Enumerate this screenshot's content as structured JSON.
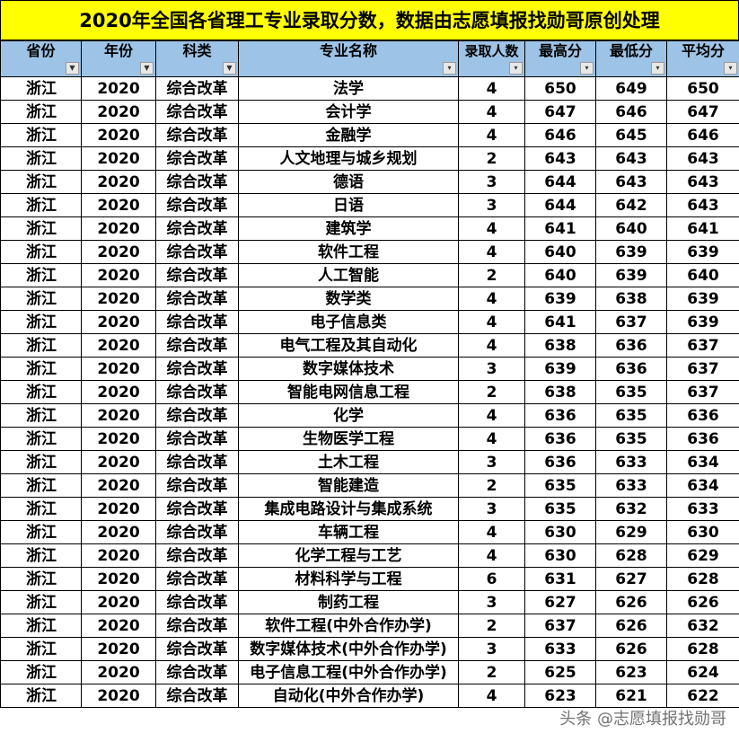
{
  "title": "2020年全国各省理工专业录取分数，数据由志愿填报找勋哥原创处理",
  "headers": [
    "省份",
    "年份",
    "科类",
    "专业名称",
    "录取人数",
    "最高分",
    "最低分",
    "平均分"
  ],
  "header_icons": [
    "filter-active-icon",
    "filter-active-icon",
    "filter-active-icon",
    "dropdown-icon",
    "dropdown-icon",
    "dropdown-icon",
    "dropdown-icon",
    "dropdown-icon"
  ],
  "rows": [
    [
      "浙江",
      "2020",
      "综合改革",
      "法学",
      "4",
      "650",
      "649",
      "650"
    ],
    [
      "浙江",
      "2020",
      "综合改革",
      "会计学",
      "4",
      "647",
      "646",
      "647"
    ],
    [
      "浙江",
      "2020",
      "综合改革",
      "金融学",
      "4",
      "646",
      "645",
      "646"
    ],
    [
      "浙江",
      "2020",
      "综合改革",
      "人文地理与城乡规划",
      "2",
      "643",
      "643",
      "643"
    ],
    [
      "浙江",
      "2020",
      "综合改革",
      "德语",
      "3",
      "644",
      "643",
      "643"
    ],
    [
      "浙江",
      "2020",
      "综合改革",
      "日语",
      "3",
      "644",
      "642",
      "643"
    ],
    [
      "浙江",
      "2020",
      "综合改革",
      "建筑学",
      "4",
      "641",
      "640",
      "641"
    ],
    [
      "浙江",
      "2020",
      "综合改革",
      "软件工程",
      "4",
      "640",
      "639",
      "639"
    ],
    [
      "浙江",
      "2020",
      "综合改革",
      "人工智能",
      "2",
      "640",
      "639",
      "640"
    ],
    [
      "浙江",
      "2020",
      "综合改革",
      "数学类",
      "4",
      "639",
      "638",
      "639"
    ],
    [
      "浙江",
      "2020",
      "综合改革",
      "电子信息类",
      "4",
      "641",
      "637",
      "639"
    ],
    [
      "浙江",
      "2020",
      "综合改革",
      "电气工程及其自动化",
      "4",
      "638",
      "636",
      "637"
    ],
    [
      "浙江",
      "2020",
      "综合改革",
      "数字媒体技术",
      "3",
      "639",
      "636",
      "637"
    ],
    [
      "浙江",
      "2020",
      "综合改革",
      "智能电网信息工程",
      "2",
      "638",
      "635",
      "637"
    ],
    [
      "浙江",
      "2020",
      "综合改革",
      "化学",
      "4",
      "636",
      "635",
      "636"
    ],
    [
      "浙江",
      "2020",
      "综合改革",
      "生物医学工程",
      "4",
      "636",
      "635",
      "636"
    ],
    [
      "浙江",
      "2020",
      "综合改革",
      "土木工程",
      "3",
      "636",
      "633",
      "634"
    ],
    [
      "浙江",
      "2020",
      "综合改革",
      "智能建造",
      "2",
      "635",
      "633",
      "634"
    ],
    [
      "浙江",
      "2020",
      "综合改革",
      "集成电路设计与集成系统",
      "3",
      "635",
      "632",
      "633"
    ],
    [
      "浙江",
      "2020",
      "综合改革",
      "车辆工程",
      "4",
      "630",
      "629",
      "630"
    ],
    [
      "浙江",
      "2020",
      "综合改革",
      "化学工程与工艺",
      "4",
      "630",
      "628",
      "629"
    ],
    [
      "浙江",
      "2020",
      "综合改革",
      "材料科学与工程",
      "6",
      "631",
      "627",
      "628"
    ],
    [
      "浙江",
      "2020",
      "综合改革",
      "制药工程",
      "3",
      "627",
      "626",
      "626"
    ],
    [
      "浙江",
      "2020",
      "综合改革",
      "软件工程(中外合作办学)",
      "2",
      "637",
      "626",
      "632"
    ],
    [
      "浙江",
      "2020",
      "综合改革",
      "数字媒体技术(中外合作办学)",
      "3",
      "633",
      "626",
      "628"
    ],
    [
      "浙江",
      "2020",
      "综合改革",
      "电子信息工程(中外合作办学)",
      "2",
      "625",
      "623",
      "624"
    ],
    [
      "浙江",
      "2020",
      "综合改革",
      "自动化(中外合作办学)",
      "4",
      "623",
      "621",
      "622"
    ]
  ],
  "watermark": "头条 @志愿填报找勋哥",
  "colors": {
    "title_bg": "#ffff00",
    "header_bg": "#9dc3e6"
  }
}
